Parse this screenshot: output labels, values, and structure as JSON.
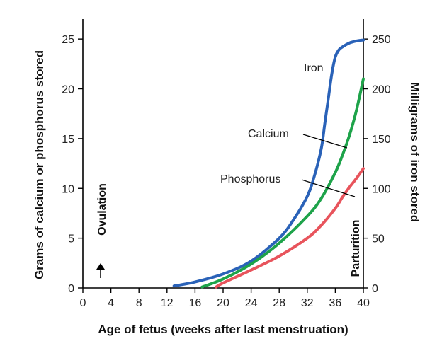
{
  "chart_data": {
    "type": "line",
    "xlabel": "Age of fetus (weeks after last menstruation)",
    "ylabel_left": "Grams of calcium or phosphorus stored",
    "ylabel_right": "Milligrams of iron stored",
    "xlim": [
      0,
      40
    ],
    "ylim_left": [
      0,
      27
    ],
    "ylim_right": [
      0,
      270
    ],
    "x_ticks": [
      "0",
      "4",
      "8",
      "12",
      "16",
      "20",
      "24",
      "28",
      "32",
      "36",
      "40"
    ],
    "y_ticks_left": [
      "0",
      "5",
      "10",
      "15",
      "20",
      "25"
    ],
    "y_ticks_right": [
      "0",
      "50",
      "100",
      "150",
      "200",
      "250"
    ],
    "grid": false,
    "series": [
      {
        "name": "Iron",
        "axis": "right",
        "color": "#2a62b8",
        "x": [
          13,
          16,
          20,
          24,
          28,
          30,
          32,
          33,
          34,
          34.5,
          35,
          35.5,
          36,
          36.5,
          37,
          38,
          39,
          40
        ],
        "y": [
          2,
          6,
          14,
          27,
          50,
          68,
          92,
          112,
          140,
          165,
          190,
          215,
          232,
          239,
          242,
          246,
          248,
          249
        ]
      },
      {
        "name": "Calcium",
        "axis": "left",
        "color": "#1ea34a",
        "x": [
          17,
          20,
          24,
          28,
          32,
          34,
          36,
          37,
          38,
          39,
          40
        ],
        "y": [
          0.1,
          0.9,
          2.4,
          4.5,
          7.2,
          9.0,
          11.6,
          13.3,
          15.3,
          17.8,
          21.0
        ]
      },
      {
        "name": "Phosphorus",
        "axis": "left",
        "color": "#e8545c",
        "x": [
          19,
          20,
          24,
          28,
          32,
          34,
          36,
          37,
          38,
          39,
          40
        ],
        "y": [
          0.1,
          0.5,
          1.8,
          3.2,
          5.0,
          6.3,
          8.0,
          9.1,
          10.1,
          11.0,
          12.0
        ]
      }
    ],
    "annotations": {
      "ovulation": "Ovulation",
      "parturition": "Parturition",
      "iron_label": "Iron",
      "calcium_label": "Calcium",
      "phosphorus_label": "Phosphorus"
    }
  }
}
